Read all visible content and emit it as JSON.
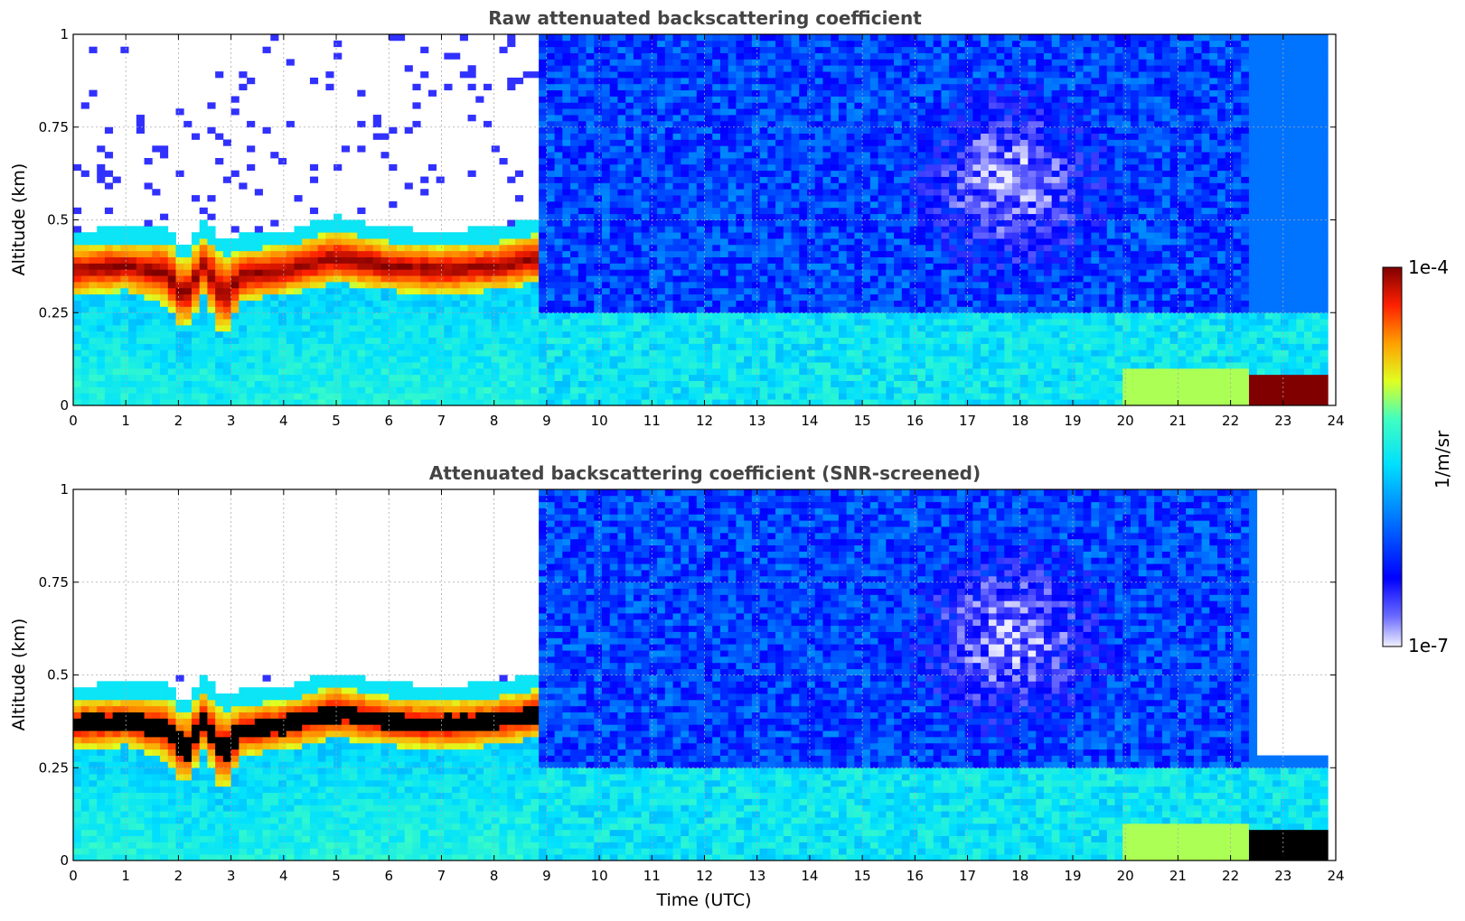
{
  "chart_data": [
    {
      "type": "heatmap",
      "title": "Raw attenuated backscattering coefficient",
      "xlabel": "",
      "ylabel": "Altitude (km)",
      "xlim": [
        0,
        24
      ],
      "ylim": [
        0,
        1
      ],
      "x_ticks": [
        "0",
        "1",
        "2",
        "3",
        "4",
        "5",
        "6",
        "7",
        "8",
        "9",
        "10",
        "11",
        "12",
        "13",
        "14",
        "15",
        "16",
        "17",
        "18",
        "19",
        "20",
        "21",
        "22",
        "23",
        "24"
      ],
      "y_ticks": [
        "0",
        "0.25",
        "0.5",
        "0.75",
        "1"
      ],
      "grid": true,
      "layers": [
        {
          "name": "boundary",
          "time": [
            0,
            1,
            1.8,
            2.1,
            2.5,
            2.85,
            3.2,
            4,
            5,
            6,
            7,
            8,
            8.8
          ],
          "base_km": [
            0.3,
            0.31,
            0.27,
            0.2,
            0.3,
            0.18,
            0.28,
            0.3,
            0.33,
            0.31,
            0.3,
            0.31,
            0.33
          ],
          "top_km": [
            0.43,
            0.44,
            0.44,
            0.38,
            0.46,
            0.4,
            0.42,
            0.43,
            0.47,
            0.44,
            0.43,
            0.44,
            0.46
          ],
          "log10_value": -4
        }
      ],
      "background_log10": {
        "below_0.3km_0_9h": -5.6,
        "sky_9_22h": -6.2
      },
      "surface_layer": {
        "time_range": [
          22.4,
          23.8
        ],
        "top_km": 0.08,
        "log10_value": -4
      }
    },
    {
      "type": "heatmap",
      "title": "Attenuated backscattering coefficient (SNR-screened)",
      "xlabel": "Time (UTC)",
      "ylabel": "Altitude (km)",
      "xlim": [
        0,
        24
      ],
      "ylim": [
        0,
        1
      ],
      "x_ticks": [
        "0",
        "1",
        "2",
        "3",
        "4",
        "5",
        "6",
        "7",
        "8",
        "9",
        "10",
        "11",
        "12",
        "13",
        "14",
        "15",
        "16",
        "17",
        "18",
        "19",
        "20",
        "21",
        "22",
        "23",
        "24"
      ],
      "y_ticks": [
        "0",
        "0.25",
        "0.5",
        "0.75",
        "1"
      ],
      "grid": true,
      "screened": true,
      "masked_regions": [
        {
          "time_range": [
            0,
            8.8
          ],
          "altitude_range": [
            0.5,
            1
          ]
        },
        {
          "time_range": [
            22.5,
            24
          ],
          "altitude_range": [
            0.28,
            1
          ]
        }
      ]
    }
  ],
  "colorbar": {
    "label": "1/m/sr",
    "min_label": "1e-7",
    "max_label": "1e-4",
    "scale": "log",
    "colormap": "jet"
  }
}
